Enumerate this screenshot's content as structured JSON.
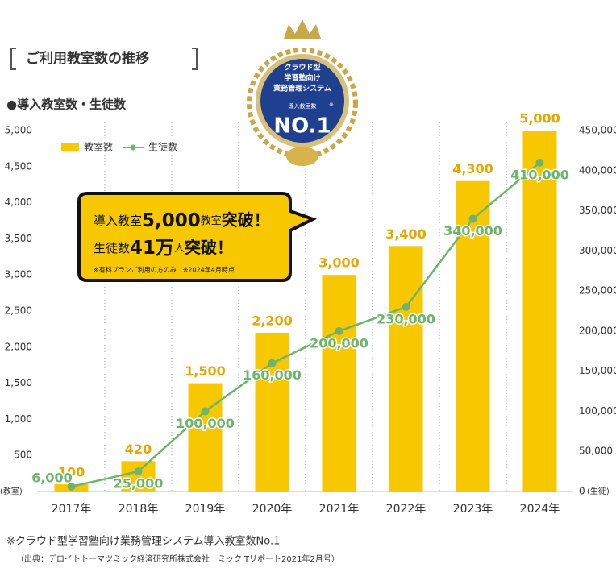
{
  "chart_data": {
    "type": "bar",
    "title": "ご利用教室数の推移",
    "subtitle": "●導入教室数・生徒数",
    "y_label": "(教室)",
    "y2_label": "(生徒)",
    "categories": [
      "2017年",
      "2018年",
      "2019年",
      "2020年",
      "2021年",
      "2022年",
      "2023年",
      "2024年"
    ],
    "series": [
      {
        "name": "教室数",
        "type": "bar",
        "color": "#f7c800",
        "label_color": "#e8a600",
        "values": [
          100,
          420,
          1500,
          2200,
          3000,
          3400,
          4300,
          5000
        ],
        "value_labels": [
          "100",
          "420",
          "1,500",
          "2,200",
          "3,000",
          "3,400",
          "4,300",
          "5,000"
        ]
      },
      {
        "name": "生徒数",
        "type": "line",
        "axis": "y2",
        "color": "#6db56d",
        "values": [
          6000,
          25000,
          100000,
          160000,
          200000,
          230000,
          340000,
          410000
        ],
        "value_labels": [
          "6,000",
          "25,000",
          "100,000",
          "160,000",
          "200,000",
          "230,000",
          "340,000",
          "410,000"
        ]
      }
    ],
    "ylim": [
      0,
      5000
    ],
    "yticks": [
      500,
      {
        "value": 1000,
        "label": "1,000"
      },
      {
        "value": 1500,
        "label": "1,500"
      },
      {
        "value": 2000,
        "label": "2,000"
      },
      {
        "value": 2500,
        "label": "2,500"
      },
      {
        "value": 3000,
        "label": "3,000"
      },
      {
        "value": 3500,
        "label": "3,500"
      },
      {
        "value": 4000,
        "label": "4,000"
      },
      {
        "value": 4500,
        "label": "4,500"
      },
      {
        "value": 5000,
        "label": "5,000"
      }
    ],
    "y2lim": [
      0,
      450000
    ],
    "y2ticks": [
      0,
      {
        "value": 50000,
        "label": "50,000"
      },
      {
        "value": 100000,
        "label": "100,000"
      },
      {
        "value": 150000,
        "label": "150,000"
      },
      {
        "value": 200000,
        "label": "200,000"
      },
      {
        "value": 250000,
        "label": "250,000"
      },
      {
        "value": 300000,
        "label": "300,000"
      },
      {
        "value": 350000,
        "label": "350,000"
      },
      {
        "value": 400000,
        "label": "400,000"
      },
      {
        "value": 450000,
        "label": "450,000"
      }
    ]
  },
  "callout": {
    "line1": [
      "導入教室",
      "5,000",
      "教室",
      "突破！"
    ],
    "line2": [
      "生徒数",
      "41万",
      "人",
      "突破！"
    ],
    "note": "※有料プランご利用の方のみ　※2024年4月時点"
  },
  "badge": {
    "lines": [
      "クラウド型",
      "学習塾向け",
      "業務管理システム"
    ],
    "sub": "導入教室数",
    "rank": "NO.1",
    "mark": "※"
  },
  "footnotes": [
    "※クラウド型学習塾向け業務管理システム導入教室数No.1",
    "（出典：デロイトトーマツミック経済研究所株式会社　ミックITリポート2021年2月号）"
  ]
}
